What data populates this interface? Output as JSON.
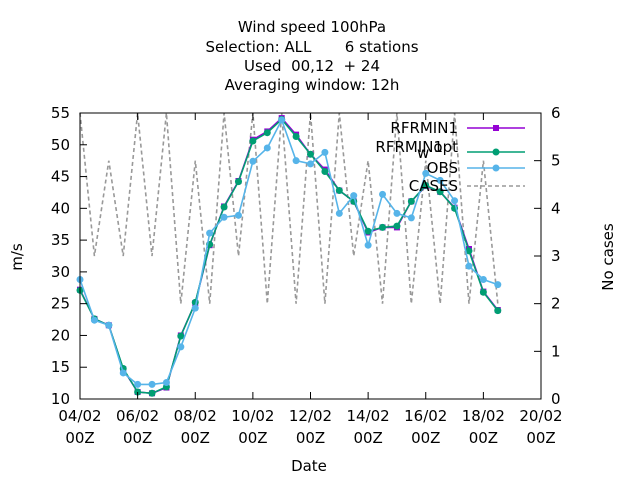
{
  "chart_data": {
    "type": "line",
    "title_lines": [
      "Wind speed 100hPa",
      "Selection: ALL       6 stations",
      "Used  00,12  + 24",
      "Averaging window: 12h"
    ],
    "xlabel": "Date",
    "ylabel": "m/s",
    "y2label": "No cases",
    "x_range_days": [
      4,
      20
    ],
    "ylim": [
      10,
      55
    ],
    "y2lim": [
      0,
      6
    ],
    "x_ticks": [
      {
        "day": 4,
        "line1": "04/02",
        "line2": "00Z"
      },
      {
        "day": 6,
        "line1": "06/02",
        "line2": "00Z"
      },
      {
        "day": 8,
        "line1": "08/02",
        "line2": "00Z"
      },
      {
        "day": 10,
        "line1": "10/02",
        "line2": "00Z"
      },
      {
        "day": 12,
        "line1": "12/02",
        "line2": "00Z"
      },
      {
        "day": 14,
        "line1": "14/02",
        "line2": "00Z"
      },
      {
        "day": 16,
        "line1": "16/02",
        "line2": "00Z"
      },
      {
        "day": 18,
        "line1": "18/02",
        "line2": "00Z"
      },
      {
        "day": 20,
        "line1": "20/02",
        "line2": "00Z"
      }
    ],
    "y_ticks": [
      10,
      15,
      20,
      25,
      30,
      35,
      40,
      45,
      50,
      55
    ],
    "y2_ticks": [
      0,
      1,
      2,
      3,
      4,
      5,
      6
    ],
    "legend_position": "top-right",
    "x": [
      4,
      4.5,
      5,
      5.5,
      6,
      6.5,
      7,
      7.5,
      8,
      8.5,
      9,
      9.5,
      10,
      10.5,
      11,
      11.5,
      12,
      12.5,
      13,
      13.5,
      14,
      14.5,
      15,
      15.5,
      16,
      16.5,
      17,
      17.5,
      18,
      18.5
    ],
    "series": [
      {
        "name": "RFRMIN1",
        "color": "#9400d3",
        "style": "line-marker",
        "marker": "square",
        "axis": "y1",
        "values": [
          27.2,
          22.6,
          21.6,
          14.7,
          11.1,
          10.9,
          11.8,
          20.0,
          25.1,
          34.2,
          40.3,
          44.3,
          50.8,
          52.1,
          54.2,
          51.6,
          48.5,
          46.1,
          42.8,
          41.1,
          36.2,
          37.0,
          37.0,
          41.1,
          43.5,
          42.6,
          40.1,
          33.6,
          26.9,
          24.0
        ]
      },
      {
        "name": "RFRMIN1_w_opt",
        "color": "#009e73",
        "style": "line-marker",
        "marker": "circle",
        "axis": "y1",
        "values": [
          27.1,
          22.6,
          21.6,
          14.8,
          11.1,
          10.9,
          11.9,
          19.9,
          25.2,
          34.3,
          40.2,
          44.2,
          50.6,
          51.9,
          54.0,
          51.3,
          48.5,
          45.8,
          42.8,
          41.1,
          36.4,
          37.0,
          37.2,
          41.1,
          43.6,
          42.6,
          40.0,
          33.3,
          26.8,
          23.9
        ]
      },
      {
        "name": "OBS",
        "color": "#56b4e9",
        "style": "line-marker",
        "marker": "circle",
        "axis": "y1",
        "values": [
          28.8,
          22.4,
          21.6,
          14.1,
          12.3,
          12.3,
          12.6,
          18.2,
          24.3,
          36.1,
          38.6,
          38.9,
          47.4,
          49.5,
          53.9,
          47.5,
          47.0,
          48.8,
          39.2,
          42.0,
          34.2,
          42.2,
          39.2,
          38.5,
          45.5,
          44.4,
          41.2,
          30.9,
          28.8,
          28.0
        ]
      },
      {
        "name": "CASES",
        "color": "#999999",
        "style": "dashed",
        "axis": "y2",
        "values": [
          6,
          3,
          5,
          3,
          6,
          3,
          6,
          2,
          5,
          2,
          6,
          3,
          6,
          2,
          6,
          2,
          6,
          2,
          6,
          3,
          5,
          2,
          6,
          2,
          5,
          2,
          6,
          2,
          5,
          2
        ]
      }
    ],
    "legend_labels": {
      "RFRMIN1": "RFRMIN1",
      "RFRMIN1_w_opt_main": "RFRMIN1",
      "RFRMIN1_w_opt_sub": "w",
      "RFRMIN1_w_opt_tail": "opt",
      "OBS": "OBS",
      "CASES": "CASES"
    }
  }
}
